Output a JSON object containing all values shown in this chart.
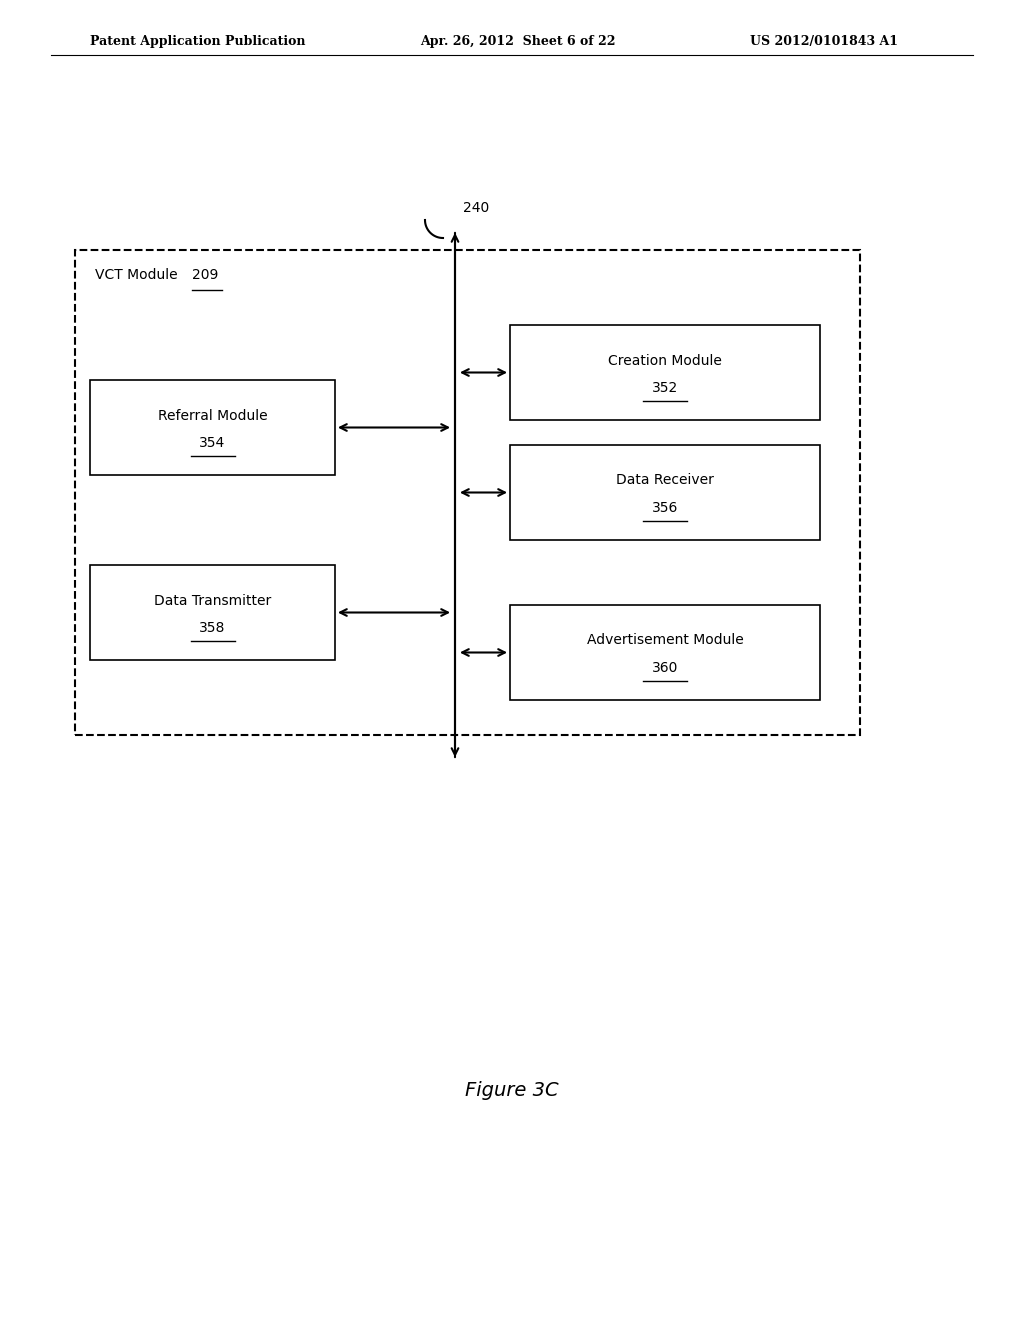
{
  "header_left": "Patent Application Publication",
  "header_center": "Apr. 26, 2012  Sheet 6 of 22",
  "header_right": "US 2012/0101843 A1",
  "figure_label": "Figure 3C",
  "arrow_label": "240",
  "outer_box_label": "VCT Module ",
  "outer_box_label_num": "209",
  "left_boxes": [
    {
      "label": "Referral Module",
      "num": "354"
    },
    {
      "label": "Data Transmitter",
      "num": "358"
    }
  ],
  "right_boxes": [
    {
      "label": "Creation Module",
      "num": "352"
    },
    {
      "label": "Data Receiver",
      "num": "356"
    },
    {
      "label": "Advertisement Module",
      "num": "360"
    }
  ],
  "bg_color": "#ffffff",
  "box_color": "#ffffff",
  "box_edge_color": "#000000",
  "text_color": "#000000",
  "line_color": "#000000"
}
